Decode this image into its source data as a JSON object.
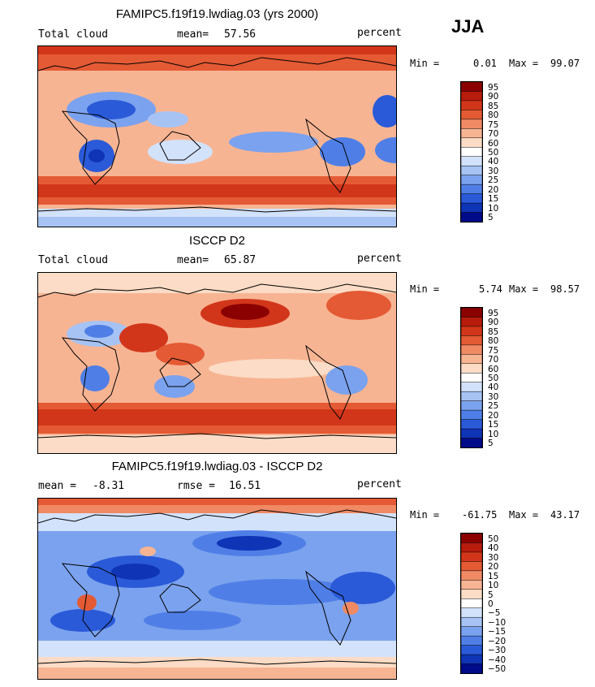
{
  "season": "JJA",
  "chart_data": [
    {
      "type": "heatmap",
      "title": "FAMIPC5.f19f19.lwdiag.03 (yrs 2000)",
      "left_label": "Total cloud",
      "stat1_label": "mean=",
      "stat1_value": "57.56",
      "units": "percent",
      "min_label": "Min =",
      "min_value": "0.01",
      "max_label": "Max =",
      "max_value": "99.07",
      "colorbar_levels": [
        "95",
        "90",
        "85",
        "80",
        "75",
        "70",
        "60",
        "50",
        "40",
        "30",
        "25",
        "20",
        "15",
        "10",
        "5"
      ],
      "colorbar_colors": [
        "#8b0000",
        "#b71c0c",
        "#d2361a",
        "#e45a34",
        "#f08a64",
        "#f7b493",
        "#fcdcc6",
        "#ffffff",
        "#d3e2fb",
        "#a6c3f4",
        "#7ba2ee",
        "#4f7fe6",
        "#2a5ad8",
        "#0f34b6",
        "#000b8a"
      ]
    },
    {
      "type": "heatmap",
      "title": "ISCCP D2",
      "left_label": "Total cloud",
      "stat1_label": "mean=",
      "stat1_value": "65.87",
      "units": "percent",
      "min_label": "Min =",
      "min_value": "5.74",
      "max_label": "Max =",
      "max_value": "98.57",
      "colorbar_levels": [
        "95",
        "90",
        "85",
        "80",
        "75",
        "70",
        "60",
        "50",
        "40",
        "30",
        "25",
        "20",
        "15",
        "10",
        "5"
      ],
      "colorbar_colors": [
        "#8b0000",
        "#b71c0c",
        "#d2361a",
        "#e45a34",
        "#f08a64",
        "#f7b493",
        "#fcdcc6",
        "#ffffff",
        "#d3e2fb",
        "#a6c3f4",
        "#7ba2ee",
        "#4f7fe6",
        "#2a5ad8",
        "#0f34b6",
        "#000b8a"
      ]
    },
    {
      "type": "heatmap",
      "title": "FAMIPC5.f19f19.lwdiag.03 - ISCCP D2",
      "stat1_label": "mean =",
      "stat1_value": "-8.31",
      "stat2_label": "rmse =",
      "stat2_value": "16.51",
      "units": "percent",
      "min_label": "Min =",
      "min_value": "-61.75",
      "max_label": "Max =",
      "max_value": "43.17",
      "colorbar_levels": [
        "50",
        "40",
        "30",
        "20",
        "15",
        "10",
        "5",
        "0",
        "−5",
        "−10",
        "−15",
        "−20",
        "−30",
        "−40",
        "−50"
      ],
      "colorbar_colors": [
        "#8b0000",
        "#b71c0c",
        "#d2361a",
        "#e45a34",
        "#f08a64",
        "#f7b493",
        "#fcdcc6",
        "#ffffff",
        "#d3e2fb",
        "#a6c3f4",
        "#7ba2ee",
        "#4f7fe6",
        "#2a5ad8",
        "#0f34b6",
        "#000b8a"
      ]
    }
  ]
}
